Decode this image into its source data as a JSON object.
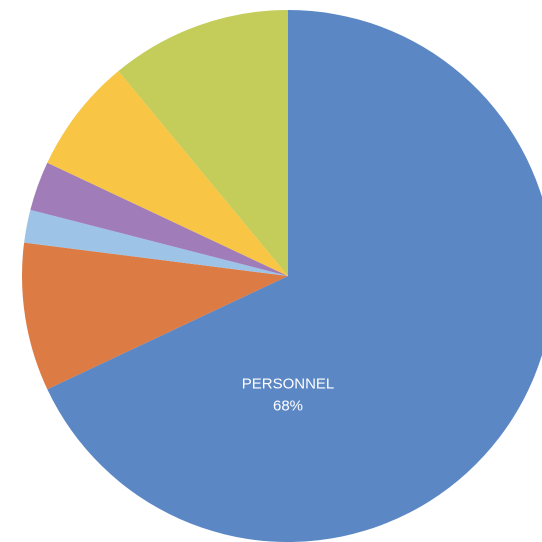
{
  "chart_data": {
    "type": "pie",
    "categories": [
      "PERSONNEL",
      null,
      null,
      null,
      null,
      null
    ],
    "values": [
      68,
      9,
      2,
      3,
      7,
      11
    ],
    "value_labels": [
      "68%",
      null,
      null,
      null,
      null,
      null
    ],
    "colors": [
      "#5b87c5",
      "#dc7b44",
      "#9dc3e6",
      "#a07cb8",
      "#f8c644",
      "#c4cc5a"
    ],
    "direction": "clockwise",
    "start": "top"
  }
}
